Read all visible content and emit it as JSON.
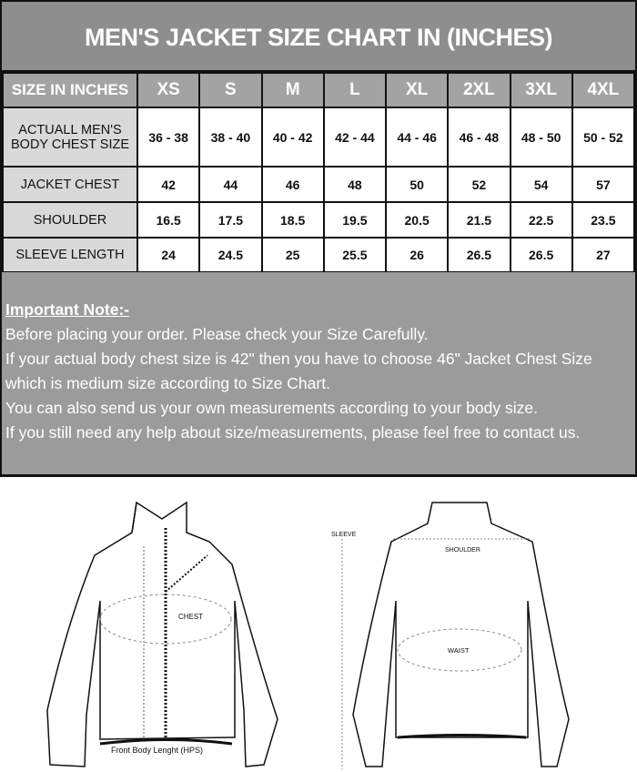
{
  "title": "MEN'S JACKET SIZE CHART IN (INCHES)",
  "header": {
    "label": "SIZE IN INCHES",
    "sizes": [
      "XS",
      "S",
      "M",
      "L",
      "XL",
      "2XL",
      "3XL",
      "4XL"
    ]
  },
  "rows": [
    {
      "label": "ACTUALL MEN'S BODY CHEST SIZE",
      "values": [
        "36 - 38",
        "38 - 40",
        "40 - 42",
        "42 - 44",
        "44 - 46",
        "46 - 48",
        "48 - 50",
        "50 - 52"
      ]
    },
    {
      "label": "JACKET CHEST",
      "values": [
        "42",
        "44",
        "46",
        "48",
        "50",
        "52",
        "54",
        "57"
      ]
    },
    {
      "label": "SHOULDER",
      "values": [
        "16.5",
        "17.5",
        "18.5",
        "19.5",
        "20.5",
        "21.5",
        "22.5",
        "23.5"
      ]
    },
    {
      "label": "SLEEVE LENGTH",
      "values": [
        "24",
        "24.5",
        "25",
        "25.5",
        "26",
        "26.5",
        "26.5",
        "27"
      ]
    }
  ],
  "note": {
    "heading": "Important Note:-",
    "lines": [
      "Before placing your order. Please check your Size Carefully.",
      "If your actual body chest size is 42\" then you have to choose 46\" Jacket Chest Size which is medium size according to Size Chart.",
      "You can also send us your own measurements according to your body size.",
      "If you still need any help about size/measurements, please feel free to contact us."
    ]
  },
  "diagram": {
    "chest": "CHEST",
    "front_length": "Front Body Lenght (HPS)",
    "sleeve": "SLEEVE",
    "shoulder": "SHOULDER",
    "waist": "WAIST"
  }
}
